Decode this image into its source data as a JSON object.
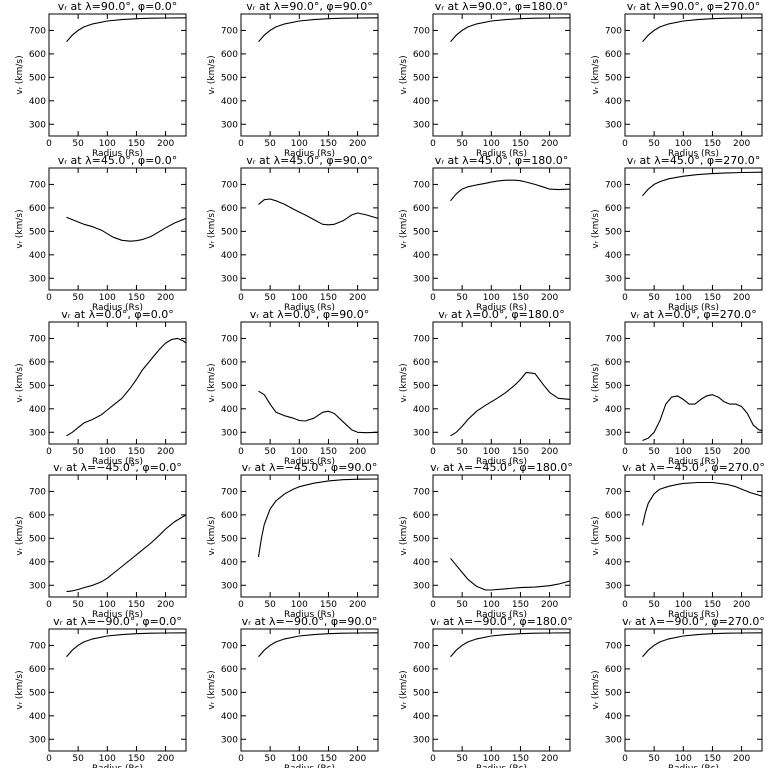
{
  "figure": {
    "xlabel": "Radius (Rs)",
    "ylabel": "vᵣ (km/s)",
    "xlim": [
      0,
      235
    ],
    "ylim": [
      250,
      770
    ],
    "xticks": [
      0,
      50,
      100,
      150,
      200
    ],
    "yticks": [
      300,
      400,
      500,
      600,
      700
    ],
    "line_color": "#000000"
  },
  "chart_data": [
    {
      "type": "line",
      "title": "vᵣ at λ=90.0°, φ=0.0°",
      "xlabel": "Radius (Rs)",
      "ylabel": "vᵣ (km/s)",
      "xlim": [
        0,
        235
      ],
      "ylim": [
        250,
        770
      ],
      "series": [
        {
          "x": [
            30,
            40,
            50,
            60,
            75,
            100,
            125,
            150,
            175,
            200,
            235
          ],
          "y": [
            652,
            680,
            700,
            715,
            728,
            740,
            746,
            750,
            752,
            753,
            754
          ]
        }
      ]
    },
    {
      "type": "line",
      "title": "vᵣ at λ=90.0°, φ=90.0°",
      "xlabel": "Radius (Rs)",
      "ylabel": "vᵣ (km/s)",
      "xlim": [
        0,
        235
      ],
      "ylim": [
        250,
        770
      ],
      "series": [
        {
          "x": [
            30,
            40,
            50,
            60,
            75,
            100,
            125,
            150,
            175,
            200,
            235
          ],
          "y": [
            652,
            680,
            700,
            715,
            728,
            740,
            746,
            750,
            752,
            753,
            754
          ]
        }
      ]
    },
    {
      "type": "line",
      "title": "vᵣ at λ=90.0°, φ=180.0°",
      "xlabel": "Radius (Rs)",
      "ylabel": "vᵣ (km/s)",
      "xlim": [
        0,
        235
      ],
      "ylim": [
        250,
        770
      ],
      "series": [
        {
          "x": [
            30,
            40,
            50,
            60,
            75,
            100,
            125,
            150,
            175,
            200,
            235
          ],
          "y": [
            652,
            680,
            700,
            715,
            728,
            740,
            746,
            750,
            752,
            753,
            754
          ]
        }
      ]
    },
    {
      "type": "line",
      "title": "vᵣ at λ=90.0°, φ=270.0°",
      "xlabel": "Radius (Rs)",
      "ylabel": "vᵣ (km/s)",
      "xlim": [
        0,
        235
      ],
      "ylim": [
        250,
        770
      ],
      "series": [
        {
          "x": [
            30,
            40,
            50,
            60,
            75,
            100,
            125,
            150,
            175,
            200,
            235
          ],
          "y": [
            652,
            680,
            700,
            715,
            728,
            740,
            746,
            750,
            752,
            753,
            754
          ]
        }
      ]
    },
    {
      "type": "line",
      "title": "vᵣ at λ=45.0°, φ=0.0°",
      "xlabel": "Radius (Rs)",
      "ylabel": "vᵣ (km/s)",
      "xlim": [
        0,
        235
      ],
      "ylim": [
        250,
        770
      ],
      "series": [
        {
          "x": [
            30,
            40,
            50,
            60,
            75,
            90,
            100,
            110,
            125,
            140,
            150,
            160,
            175,
            190,
            200,
            215,
            235
          ],
          "y": [
            560,
            550,
            540,
            530,
            520,
            505,
            490,
            475,
            462,
            458,
            460,
            465,
            478,
            500,
            515,
            535,
            555
          ]
        }
      ]
    },
    {
      "type": "line",
      "title": "vᵣ at λ=45.0°, φ=90.0°",
      "xlabel": "Radius (Rs)",
      "ylabel": "vᵣ (km/s)",
      "xlim": [
        0,
        235
      ],
      "ylim": [
        250,
        770
      ],
      "series": [
        {
          "x": [
            30,
            40,
            50,
            60,
            75,
            90,
            100,
            110,
            125,
            140,
            150,
            160,
            175,
            190,
            200,
            215,
            235
          ],
          "y": [
            615,
            635,
            638,
            630,
            615,
            595,
            582,
            570,
            550,
            530,
            528,
            530,
            545,
            570,
            578,
            570,
            555
          ]
        }
      ]
    },
    {
      "type": "line",
      "title": "vᵣ at λ=45.0°, φ=180.0°",
      "xlabel": "Radius (Rs)",
      "ylabel": "vᵣ (km/s)",
      "xlim": [
        0,
        235
      ],
      "ylim": [
        250,
        770
      ],
      "series": [
        {
          "x": [
            30,
            40,
            50,
            60,
            75,
            90,
            100,
            110,
            125,
            140,
            150,
            160,
            175,
            190,
            200,
            215,
            235
          ],
          "y": [
            630,
            660,
            680,
            690,
            698,
            705,
            710,
            714,
            718,
            718,
            716,
            710,
            700,
            688,
            680,
            678,
            680
          ]
        }
      ]
    },
    {
      "type": "line",
      "title": "vᵣ at λ=45.0°, φ=270.0°",
      "xlabel": "Radius (Rs)",
      "ylabel": "vᵣ (km/s)",
      "xlim": [
        0,
        235
      ],
      "ylim": [
        250,
        770
      ],
      "series": [
        {
          "x": [
            30,
            40,
            50,
            60,
            75,
            100,
            125,
            150,
            175,
            200,
            235
          ],
          "y": [
            652,
            680,
            700,
            712,
            724,
            735,
            742,
            746,
            749,
            751,
            752
          ]
        }
      ]
    },
    {
      "type": "line",
      "title": "vᵣ at λ=0.0°, φ=0.0°",
      "xlabel": "Radius (Rs)",
      "ylabel": "vᵣ (km/s)",
      "xlim": [
        0,
        235
      ],
      "ylim": [
        250,
        770
      ],
      "series": [
        {
          "x": [
            30,
            40,
            50,
            60,
            75,
            90,
            100,
            110,
            125,
            140,
            150,
            160,
            175,
            190,
            200,
            210,
            220,
            230,
            235
          ],
          "y": [
            285,
            300,
            320,
            340,
            355,
            375,
            395,
            415,
            445,
            490,
            525,
            565,
            610,
            655,
            680,
            695,
            700,
            690,
            680
          ]
        }
      ]
    },
    {
      "type": "line",
      "title": "vᵣ at λ=0.0°, φ=90.0°",
      "xlabel": "Radius (Rs)",
      "ylabel": "vᵣ (km/s)",
      "xlim": [
        0,
        235
      ],
      "ylim": [
        250,
        770
      ],
      "series": [
        {
          "x": [
            30,
            40,
            50,
            60,
            75,
            90,
            100,
            110,
            125,
            140,
            150,
            160,
            175,
            190,
            200,
            215,
            235
          ],
          "y": [
            475,
            460,
            420,
            385,
            370,
            360,
            350,
            348,
            360,
            385,
            390,
            380,
            345,
            310,
            300,
            298,
            300
          ]
        }
      ]
    },
    {
      "type": "line",
      "title": "vᵣ at λ=0.0°, φ=180.0°",
      "xlabel": "Radius (Rs)",
      "ylabel": "vᵣ (km/s)",
      "xlim": [
        0,
        235
      ],
      "ylim": [
        250,
        770
      ],
      "series": [
        {
          "x": [
            30,
            40,
            50,
            60,
            75,
            90,
            100,
            110,
            125,
            140,
            150,
            160,
            175,
            190,
            200,
            215,
            235
          ],
          "y": [
            285,
            300,
            325,
            355,
            390,
            415,
            430,
            445,
            470,
            500,
            525,
            555,
            550,
            500,
            470,
            445,
            440
          ]
        }
      ]
    },
    {
      "type": "line",
      "title": "vᵣ at λ=0.0°, φ=270.0°",
      "xlabel": "Radius (Rs)",
      "ylabel": "vᵣ (km/s)",
      "xlim": [
        0,
        235
      ],
      "ylim": [
        250,
        770
      ],
      "series": [
        {
          "x": [
            30,
            40,
            50,
            60,
            70,
            80,
            90,
            100,
            110,
            120,
            130,
            140,
            150,
            160,
            170,
            180,
            190,
            200,
            210,
            220,
            230,
            235
          ],
          "y": [
            265,
            275,
            300,
            350,
            420,
            450,
            455,
            440,
            420,
            420,
            440,
            455,
            460,
            450,
            430,
            420,
            420,
            410,
            380,
            330,
            310,
            308
          ]
        }
      ]
    },
    {
      "type": "line",
      "title": "vᵣ at λ=−45.0°, φ=0.0°",
      "xlabel": "Radius (Rs)",
      "ylabel": "vᵣ (km/s)",
      "xlim": [
        0,
        235
      ],
      "ylim": [
        250,
        770
      ],
      "series": [
        {
          "x": [
            30,
            40,
            50,
            60,
            75,
            90,
            100,
            110,
            125,
            140,
            150,
            160,
            175,
            190,
            200,
            215,
            235
          ],
          "y": [
            273,
            276,
            282,
            290,
            300,
            315,
            330,
            350,
            380,
            410,
            430,
            450,
            480,
            515,
            540,
            570,
            600
          ]
        }
      ]
    },
    {
      "type": "line",
      "title": "vᵣ at λ=−45.0°, φ=90.0°",
      "xlabel": "Radius (Rs)",
      "ylabel": "vᵣ (km/s)",
      "xlim": [
        0,
        235
      ],
      "ylim": [
        250,
        770
      ],
      "series": [
        {
          "x": [
            30,
            35,
            40,
            50,
            60,
            75,
            90,
            100,
            125,
            150,
            175,
            200,
            235
          ],
          "y": [
            420,
            500,
            560,
            625,
            660,
            690,
            710,
            720,
            735,
            745,
            750,
            752,
            753
          ]
        }
      ]
    },
    {
      "type": "line",
      "title": "vᵣ at λ=−45.0°, φ=180.0°",
      "xlabel": "Radius (Rs)",
      "ylabel": "vᵣ (km/s)",
      "xlim": [
        0,
        235
      ],
      "ylim": [
        250,
        770
      ],
      "series": [
        {
          "x": [
            30,
            40,
            50,
            60,
            75,
            90,
            100,
            125,
            150,
            175,
            200,
            215,
            235
          ],
          "y": [
            415,
            385,
            355,
            325,
            295,
            280,
            280,
            285,
            290,
            292,
            298,
            305,
            318
          ]
        }
      ]
    },
    {
      "type": "line",
      "title": "vᵣ at λ=−45.0°, φ=270.0°",
      "xlabel": "Radius (Rs)",
      "ylabel": "vᵣ (km/s)",
      "xlim": [
        0,
        235
      ],
      "ylim": [
        250,
        770
      ],
      "series": [
        {
          "x": [
            30,
            35,
            40,
            50,
            60,
            75,
            90,
            100,
            125,
            150,
            175,
            190,
            200,
            215,
            235
          ],
          "y": [
            555,
            610,
            650,
            690,
            710,
            722,
            730,
            734,
            738,
            738,
            730,
            720,
            710,
            695,
            680
          ]
        }
      ]
    },
    {
      "type": "line",
      "title": "vᵣ at λ=−90.0°, φ=0.0°",
      "xlabel": "Radius (Rs)",
      "ylabel": "vᵣ (km/s)",
      "xlim": [
        0,
        235
      ],
      "ylim": [
        250,
        770
      ],
      "series": [
        {
          "x": [
            30,
            40,
            50,
            60,
            75,
            100,
            125,
            150,
            175,
            200,
            235
          ],
          "y": [
            652,
            680,
            700,
            715,
            728,
            740,
            746,
            750,
            752,
            753,
            754
          ]
        }
      ]
    },
    {
      "type": "line",
      "title": "vᵣ at λ=−90.0°, φ=90.0°",
      "xlabel": "Radius (Rs)",
      "ylabel": "vᵣ (km/s)",
      "xlim": [
        0,
        235
      ],
      "ylim": [
        250,
        770
      ],
      "series": [
        {
          "x": [
            30,
            40,
            50,
            60,
            75,
            100,
            125,
            150,
            175,
            200,
            235
          ],
          "y": [
            652,
            680,
            700,
            715,
            728,
            740,
            746,
            750,
            752,
            753,
            754
          ]
        }
      ]
    },
    {
      "type": "line",
      "title": "vᵣ at λ=−90.0°, φ=180.0°",
      "xlabel": "Radius (Rs)",
      "ylabel": "vᵣ (km/s)",
      "xlim": [
        0,
        235
      ],
      "ylim": [
        250,
        770
      ],
      "series": [
        {
          "x": [
            30,
            40,
            50,
            60,
            75,
            100,
            125,
            150,
            175,
            200,
            235
          ],
          "y": [
            652,
            680,
            700,
            715,
            728,
            740,
            746,
            750,
            752,
            753,
            754
          ]
        }
      ]
    },
    {
      "type": "line",
      "title": "vᵣ at λ=−90.0°, φ=270.0°",
      "xlabel": "Radius (Rs)",
      "ylabel": "vᵣ (km/s)",
      "xlim": [
        0,
        235
      ],
      "ylim": [
        250,
        770
      ],
      "series": [
        {
          "x": [
            30,
            40,
            50,
            60,
            75,
            100,
            125,
            150,
            175,
            200,
            235
          ],
          "y": [
            652,
            680,
            700,
            715,
            728,
            740,
            746,
            750,
            752,
            753,
            754
          ]
        }
      ]
    }
  ]
}
